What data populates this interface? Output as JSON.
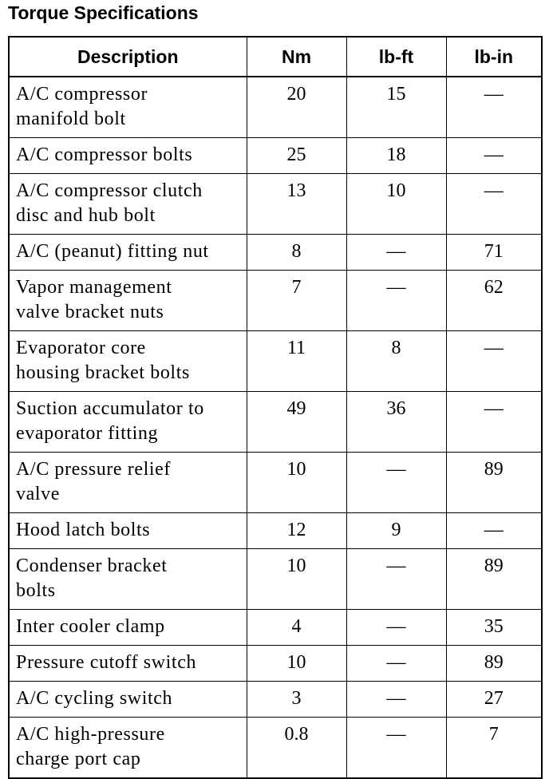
{
  "header": {
    "title": "Torque Specifications"
  },
  "table": {
    "columns": [
      "Description",
      "Nm",
      "lb-ft",
      "lb-in"
    ],
    "rows": [
      [
        [
          "A/C compressor",
          "manifold bolt"
        ],
        "20",
        "15",
        "—"
      ],
      [
        [
          "A/C compressor bolts"
        ],
        "25",
        "18",
        "—"
      ],
      [
        [
          "A/C compressor clutch",
          "disc and hub bolt"
        ],
        "13",
        "10",
        "—"
      ],
      [
        [
          "A/C (peanut) fitting nut"
        ],
        "8",
        "—",
        "71"
      ],
      [
        [
          "Vapor management",
          "valve bracket nuts"
        ],
        "7",
        "—",
        "62"
      ],
      [
        [
          "Evaporator core",
          "housing bracket bolts"
        ],
        "11",
        "8",
        "—"
      ],
      [
        [
          "Suction accumulator to",
          "evaporator fitting"
        ],
        "49",
        "36",
        "—"
      ],
      [
        [
          "A/C pressure relief",
          "valve"
        ],
        "10",
        "—",
        "89"
      ],
      [
        [
          "Hood latch bolts"
        ],
        "12",
        "9",
        "—"
      ],
      [
        [
          "Condenser bracket",
          "bolts"
        ],
        "10",
        "—",
        "89"
      ],
      [
        [
          "Inter cooler clamp"
        ],
        "4",
        "—",
        "35"
      ],
      [
        [
          "Pressure cutoff switch"
        ],
        "10",
        "—",
        "89"
      ],
      [
        [
          "A/C cycling switch"
        ],
        "3",
        "—",
        "27"
      ],
      [
        [
          "A/C high-pressure",
          "charge port cap"
        ],
        "0.8",
        "—",
        "7"
      ]
    ]
  }
}
